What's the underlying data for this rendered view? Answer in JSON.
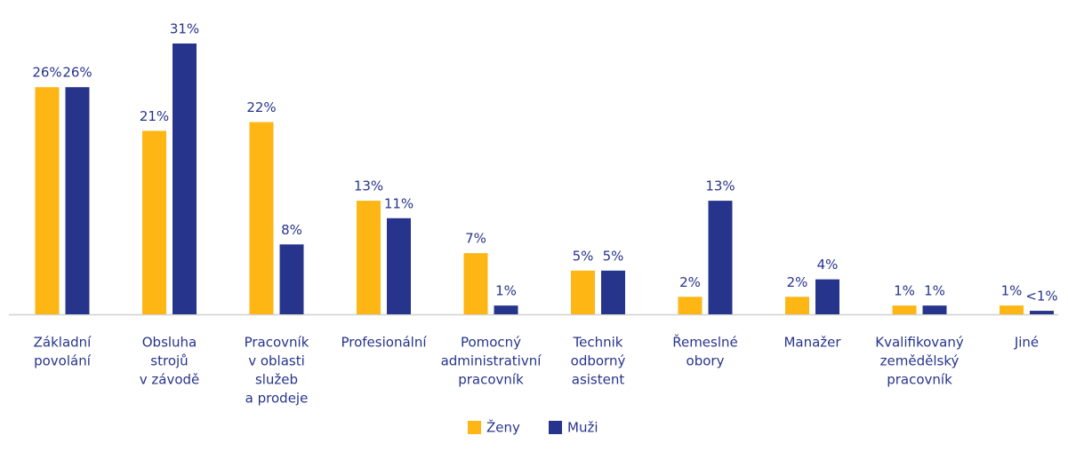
{
  "chart_data": {
    "type": "bar",
    "categories": [
      [
        "Základní",
        "povolání"
      ],
      [
        "Obsluha",
        "strojů",
        "v závodě"
      ],
      [
        "Pracovník",
        "v oblasti",
        "služeb",
        "a prodeje"
      ],
      [
        "Profesionální"
      ],
      [
        "Pomocný",
        "administrativní",
        "pracovník"
      ],
      [
        "Technik",
        "odborný",
        "asistent"
      ],
      [
        "Řemeslné",
        "obory"
      ],
      [
        "Manažer"
      ],
      [
        "Kvalifikovaný",
        "zemědělský",
        "pracovník"
      ],
      [
        "Jiné"
      ]
    ],
    "series": [
      {
        "name": "Ženy",
        "color": "#fdb614",
        "values": [
          26,
          21,
          22,
          13,
          7,
          5,
          2,
          2,
          1,
          1
        ],
        "value_labels": [
          "26%",
          "21%",
          "22%",
          "13%",
          "7%",
          "5%",
          "2%",
          "2%",
          "1%",
          "1%"
        ]
      },
      {
        "name": "Muži",
        "color": "#27348b",
        "values": [
          26,
          31,
          8,
          11,
          1,
          5,
          13,
          4,
          1,
          0.4
        ],
        "value_labels": [
          "26%",
          "31%",
          "8%",
          "11%",
          "1%",
          "5%",
          "13%",
          "4%",
          "1%",
          "<1%"
        ]
      }
    ],
    "ylim": [
      0,
      31
    ],
    "legend": "bottom"
  }
}
